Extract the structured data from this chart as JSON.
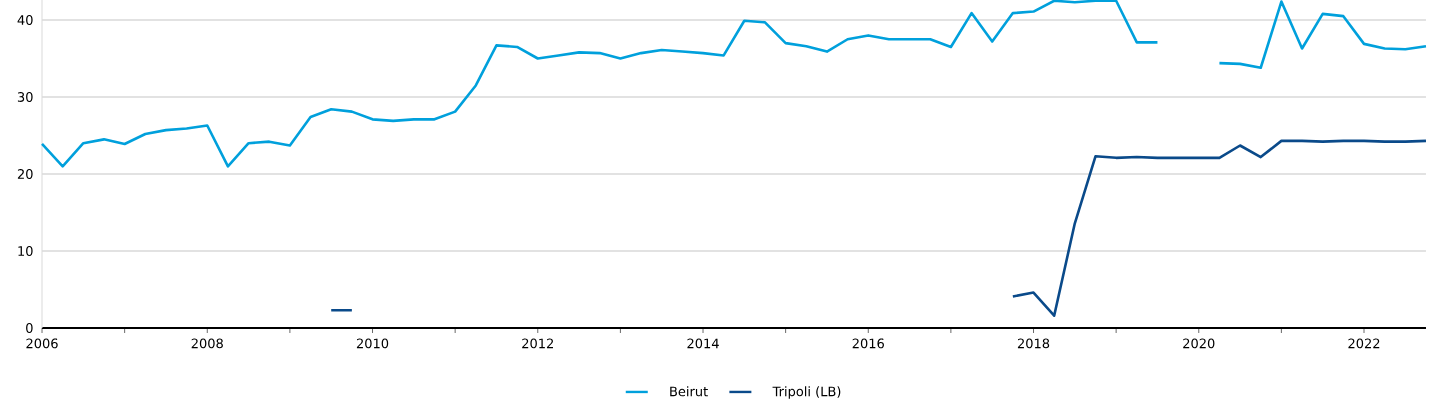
{
  "chart_data": {
    "type": "line",
    "x": [
      2006,
      2006.25,
      2006.5,
      2006.75,
      2007,
      2007.25,
      2007.5,
      2007.75,
      2008,
      2008.25,
      2008.5,
      2008.75,
      2009,
      2009.25,
      2009.5,
      2009.75,
      2010,
      2010.25,
      2010.5,
      2010.75,
      2011,
      2011.25,
      2011.5,
      2011.75,
      2012,
      2012.25,
      2012.5,
      2012.75,
      2013,
      2013.25,
      2013.5,
      2013.75,
      2014,
      2014.25,
      2014.5,
      2014.75,
      2015,
      2015.25,
      2015.5,
      2015.75,
      2016,
      2016.25,
      2016.5,
      2016.75,
      2017,
      2017.25,
      2017.5,
      2017.75,
      2018,
      2018.25,
      2018.5,
      2018.75,
      2019,
      2019.25,
      2019.5,
      2019.75,
      2020,
      2020.25,
      2020.5,
      2020.75,
      2021,
      2021.25,
      2021.5,
      2021.75,
      2022,
      2022.25,
      2022.5,
      2022.75
    ],
    "series": [
      {
        "name": "Beirut",
        "color": "#00a0dc",
        "values": [
          23.9,
          21.0,
          24.0,
          24.5,
          23.9,
          25.2,
          25.7,
          25.9,
          26.3,
          21.0,
          24.0,
          24.2,
          23.7,
          27.4,
          28.4,
          28.1,
          27.1,
          26.9,
          27.1,
          27.1,
          28.1,
          31.5,
          36.7,
          36.5,
          35.0,
          35.4,
          35.8,
          35.7,
          35.0,
          35.7,
          36.1,
          35.9,
          35.7,
          35.4,
          39.9,
          39.7,
          37.0,
          36.6,
          35.9,
          37.5,
          38.0,
          37.5,
          37.5,
          37.5,
          36.5,
          40.9,
          37.2,
          40.9,
          41.1,
          42.5,
          42.3,
          42.5,
          42.5,
          37.1,
          37.1,
          null,
          null,
          34.4,
          34.3,
          33.8,
          42.4,
          36.3,
          40.8,
          40.5,
          36.9,
          36.3,
          36.2,
          36.6
        ]
      },
      {
        "name": "Tripoli (LB)",
        "color": "#0a4a8a",
        "values": [
          null,
          null,
          null,
          null,
          null,
          null,
          null,
          null,
          null,
          null,
          null,
          null,
          null,
          null,
          2.3,
          2.3,
          null,
          null,
          null,
          null,
          null,
          null,
          null,
          null,
          null,
          null,
          null,
          null,
          null,
          null,
          null,
          null,
          null,
          null,
          null,
          null,
          null,
          null,
          null,
          null,
          null,
          null,
          null,
          null,
          null,
          null,
          null,
          4.1,
          4.6,
          1.6,
          13.6,
          22.3,
          22.1,
          22.2,
          22.1,
          22.1,
          22.1,
          22.1,
          23.7,
          22.2,
          24.3,
          24.3,
          24.2,
          24.3,
          24.3,
          24.2,
          24.2,
          24.3
        ]
      }
    ],
    "xlim": [
      2006,
      2022.75
    ],
    "xticks": [
      2006,
      {
        "value": 2007,
        "label": null
      },
      2008,
      {
        "value": 2009,
        "label": null
      },
      2010,
      {
        "value": 2011,
        "label": null
      },
      2012,
      {
        "value": 2013,
        "label": null
      },
      2014,
      {
        "value": 2015,
        "label": null
      },
      2016,
      {
        "value": 2017,
        "label": null
      },
      2018,
      {
        "value": 2019,
        "label": null
      },
      2020,
      {
        "value": 2021,
        "label": null
      },
      2022
    ],
    "ylim": [
      0,
      42.6
    ],
    "yticks": [
      0,
      10,
      20,
      30,
      40
    ],
    "grid": "y",
    "legend": "bottom",
    "marker": "none",
    "line_style": "solid"
  }
}
